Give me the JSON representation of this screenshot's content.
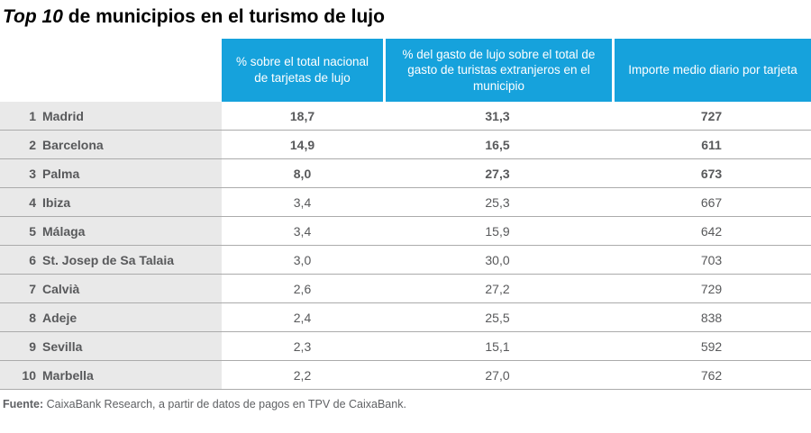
{
  "title": {
    "emphasis": "Top 10",
    "rest": "de municipios en el turismo de lujo"
  },
  "chart_data": {
    "type": "table",
    "title": "Top 10 de municipios en el turismo de lujo",
    "column_headers": [
      "% sobre el total nacional de tarjetas de lujo",
      "% del gasto de lujo sobre el total de gasto de turistas extranjeros en el municipio",
      "Importe medio diario por tarjeta"
    ],
    "rows": [
      {
        "rank": "1",
        "name": "Madrid",
        "values": [
          "18,7",
          "31,3",
          "727"
        ],
        "emphasized": true
      },
      {
        "rank": "2",
        "name": "Barcelona",
        "values": [
          "14,9",
          "16,5",
          "611"
        ],
        "emphasized": true
      },
      {
        "rank": "3",
        "name": "Palma",
        "values": [
          "8,0",
          "27,3",
          "673"
        ],
        "emphasized": true
      },
      {
        "rank": "4",
        "name": "Ibiza",
        "values": [
          "3,4",
          "25,3",
          "667"
        ],
        "emphasized": false
      },
      {
        "rank": "5",
        "name": "Málaga",
        "values": [
          "3,4",
          "15,9",
          "642"
        ],
        "emphasized": false
      },
      {
        "rank": "6",
        "name": "St. Josep de Sa Talaia",
        "values": [
          "3,0",
          "30,0",
          "703"
        ],
        "emphasized": false
      },
      {
        "rank": "7",
        "name": "Calvià",
        "values": [
          "2,6",
          "27,2",
          "729"
        ],
        "emphasized": false
      },
      {
        "rank": "8",
        "name": "Adeje",
        "values": [
          "2,4",
          "25,5",
          "838"
        ],
        "emphasized": false
      },
      {
        "rank": "9",
        "name": "Sevilla",
        "values": [
          "2,3",
          "15,1",
          "592"
        ],
        "emphasized": false
      },
      {
        "rank": "10",
        "name": "Marbella",
        "values": [
          "2,2",
          "27,0",
          "762"
        ],
        "emphasized": false
      }
    ],
    "source": "Fuente: CaixaBank Research, a partir de datos de pagos en TPV de CaixaBank."
  },
  "footer": {
    "label": "Fuente:",
    "text": "CaixaBank Research, a partir de datos de pagos en TPV de CaixaBank."
  },
  "colors": {
    "header_blue": "#16a2dc",
    "row_label_bg": "#e9e9e9",
    "text_gray": "#58595b",
    "separator_gray": "#ababab"
  }
}
